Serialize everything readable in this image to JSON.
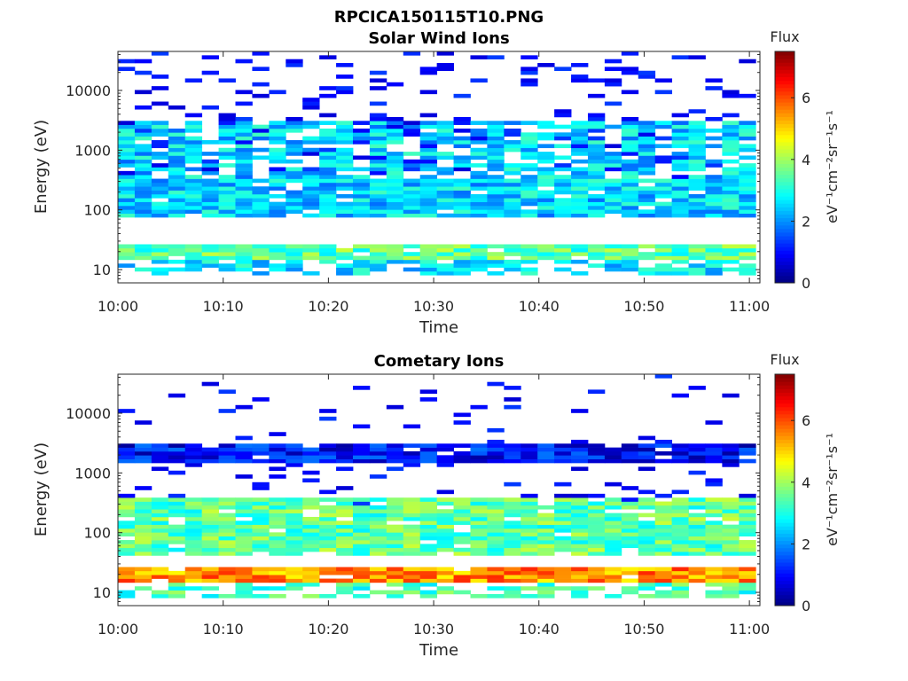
{
  "figure": {
    "title": "RPCICA150115T10.PNG"
  },
  "chart_data": [
    {
      "type": "heatmap",
      "title": "Solar Wind Ions",
      "xlabel": "Time",
      "ylabel": "Energy (eV)",
      "x_ticks": [
        "10:00",
        "10:10",
        "10:20",
        "10:30",
        "10:40",
        "10:50",
        "11:00"
      ],
      "y_ticks": [
        "10",
        "100",
        "1000",
        "10000"
      ],
      "y_scale": "log",
      "ylim": [
        6,
        45000
      ],
      "colorbar": {
        "title": "Flux",
        "label": "eV⁻¹cm⁻²sr⁻¹s⁻¹",
        "ticks": [
          "0",
          "2",
          "4",
          "6"
        ],
        "range": [
          0,
          7.5
        ],
        "colormap": "jet"
      },
      "dominant_bands": [
        {
          "energy_range_eV": [
            15,
            28
          ],
          "approx_flux": 3.5
        },
        {
          "energy_range_eV": [
            300,
            3000
          ],
          "approx_flux": 2.5
        },
        {
          "energy_range_eV": [
            80,
            350
          ],
          "approx_flux": 2.5
        }
      ]
    },
    {
      "type": "heatmap",
      "title": "Cometary Ions",
      "xlabel": "Time",
      "ylabel": "Energy (eV)",
      "x_ticks": [
        "10:00",
        "10:10",
        "10:20",
        "10:30",
        "10:40",
        "10:50",
        "11:00"
      ],
      "y_ticks": [
        "10",
        "100",
        "1000",
        "10000"
      ],
      "y_scale": "log",
      "ylim": [
        6,
        45000
      ],
      "colorbar": {
        "title": "Flux",
        "label": "eV⁻¹cm⁻²sr⁻¹s⁻¹",
        "ticks": [
          "0",
          "2",
          "4",
          "6"
        ],
        "range": [
          0,
          7.5
        ],
        "colormap": "jet"
      },
      "dominant_bands": [
        {
          "energy_range_eV": [
            15,
            28
          ],
          "approx_flux": 5.5
        },
        {
          "energy_range_eV": [
            40,
            400
          ],
          "approx_flux": 3.5
        },
        {
          "energy_range_eV": [
            1500,
            3000
          ],
          "approx_flux": 1.0
        }
      ]
    }
  ]
}
